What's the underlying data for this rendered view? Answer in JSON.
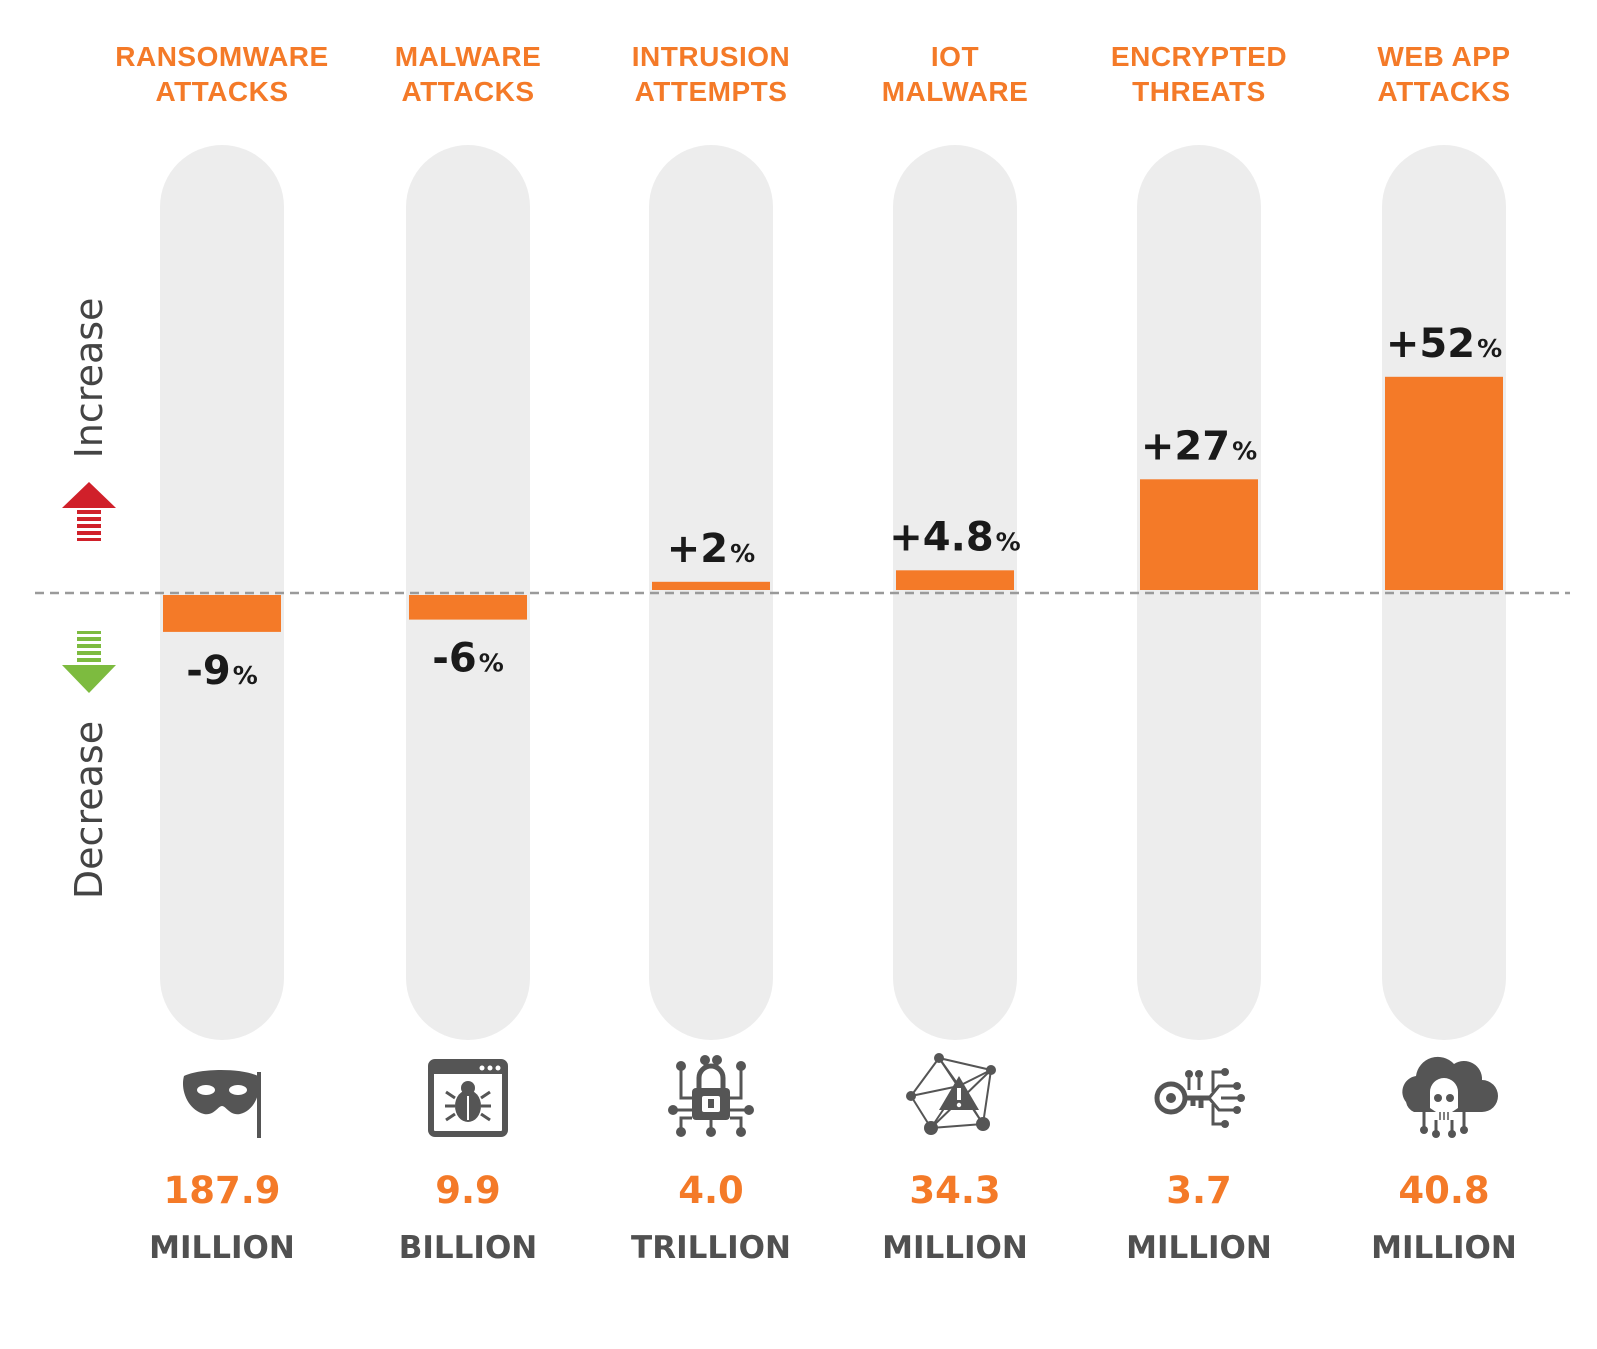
{
  "chart_data": {
    "type": "bar",
    "categories": [
      {
        "line1": "RANSOMWARE",
        "line2": "ATTACKS"
      },
      {
        "line1": "MALWARE",
        "line2": "ATTACKS"
      },
      {
        "line1": "INTRUSION",
        "line2": "ATTEMPTS"
      },
      {
        "line1": "IOT",
        "line2": "MALWARE"
      },
      {
        "line1": "ENCRYPTED",
        "line2": "THREATS"
      },
      {
        "line1": "WEB APP",
        "line2": "ATTACKS"
      }
    ],
    "values": [
      -9,
      -6,
      2,
      4.8,
      27,
      52
    ],
    "value_labels": [
      "-9",
      "-6",
      "+2",
      "+4.8",
      "+27",
      "+52"
    ],
    "value_suffix": "%",
    "totals": [
      {
        "amount": "187.9",
        "unit": "MILLION",
        "icon": "mask-icon"
      },
      {
        "amount": "9.9",
        "unit": "BILLION",
        "icon": "browser-bug-icon"
      },
      {
        "amount": "4.0",
        "unit": "TRILLION",
        "icon": "circuit-lock-icon"
      },
      {
        "amount": "34.3",
        "unit": "MILLION",
        "icon": "network-warning-icon"
      },
      {
        "amount": "3.7",
        "unit": "MILLION",
        "icon": "circuit-key-icon"
      },
      {
        "amount": "40.8",
        "unit": "MILLION",
        "icon": "cloud-skull-icon"
      }
    ],
    "axis": {
      "increase_label": "Increase",
      "decrease_label": "Decrease"
    },
    "ylim": [
      -12,
      60
    ],
    "baseline": 0,
    "colors": {
      "bar": "#f47a28",
      "track": "#ededed",
      "title": "#f47a28",
      "up_arrow": "#d0202a",
      "down_arrow": "#7dbb3f",
      "icon": "#555555"
    }
  }
}
